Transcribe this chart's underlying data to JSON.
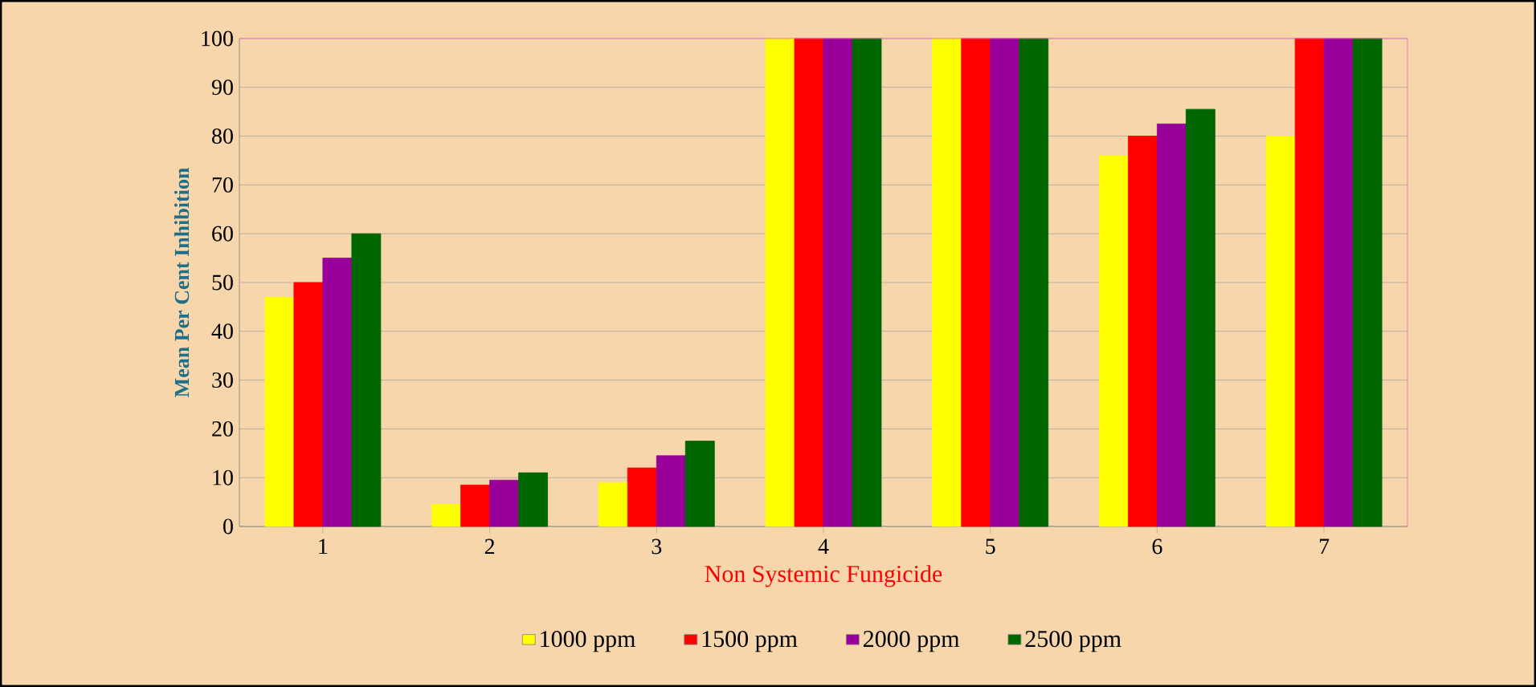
{
  "chart_data": {
    "type": "bar",
    "xlabel": "Non Systemic Fungicide",
    "ylabel": "Mean Per Cent Inhibition",
    "categories": [
      "1",
      "2",
      "3",
      "4",
      "5",
      "6",
      "7"
    ],
    "series": [
      {
        "name": "1000 ppm",
        "color": "#ffff00",
        "values": [
          47,
          4.5,
          9,
          100,
          100,
          76,
          80
        ]
      },
      {
        "name": "1500 ppm",
        "color": "#ff0000",
        "values": [
          50,
          8.5,
          12,
          100,
          100,
          80,
          100
        ]
      },
      {
        "name": "2000 ppm",
        "color": "#990099",
        "values": [
          55,
          9.5,
          14.5,
          100,
          100,
          82.5,
          100
        ]
      },
      {
        "name": "2500 ppm",
        "color": "#006600",
        "values": [
          60,
          11,
          17.5,
          100,
          100,
          85.5,
          100
        ]
      }
    ],
    "ylim": [
      0,
      100
    ],
    "yticks": [
      0,
      10,
      20,
      30,
      40,
      50,
      60,
      70,
      80,
      90,
      100
    ],
    "grid": "y",
    "legend": "bottom"
  }
}
